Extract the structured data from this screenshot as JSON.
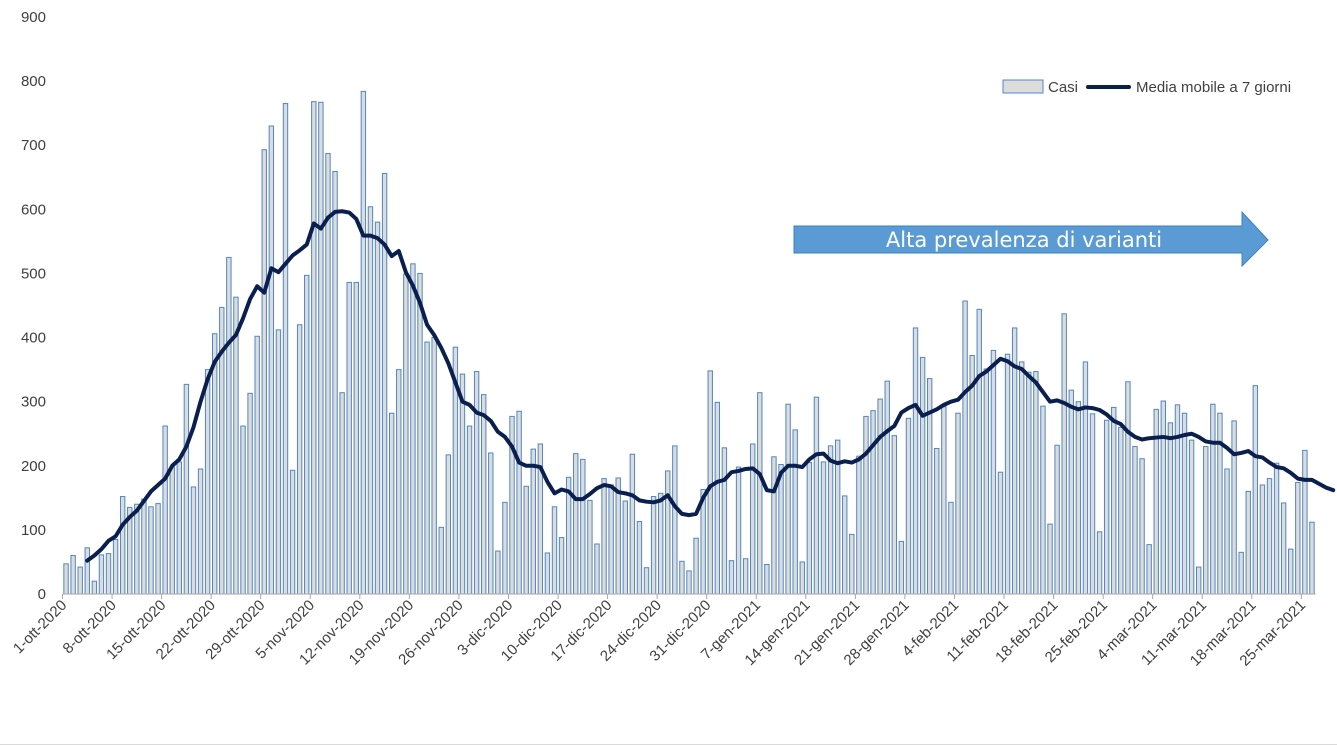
{
  "colors": {
    "bar_fill": "#dcdcdc",
    "bar_stroke": "#4f86c6",
    "line": "#0b1f4e",
    "arrow": "#5b9bd5",
    "text": "#404040"
  },
  "annotation": {
    "text": "Alta prevalenza di varianti"
  },
  "chart_data": {
    "type": "bar",
    "title": "",
    "xlabel": "",
    "ylabel": "",
    "ylim": [
      0,
      900
    ],
    "yticks": [
      0,
      100,
      200,
      300,
      400,
      500,
      600,
      700,
      800,
      900
    ],
    "grid": false,
    "legend_position": "top-right",
    "x_tick_labels": [
      "1-ott-2020",
      "8-ott-2020",
      "15-ott-2020",
      "22-ott-2020",
      "29-ott-2020",
      "5-nov-2020",
      "12-nov-2020",
      "19-nov-2020",
      "26-nov-2020",
      "3-dic-2020",
      "10-dic-2020",
      "17-dic-2020",
      "24-dic-2020",
      "31-dic-2020",
      "7-gen-2021",
      "14-gen-2021",
      "21-gen-2021",
      "28-gen-2021",
      "4-feb-2021",
      "11-feb-2021",
      "18-feb-2021",
      "25-feb-2021",
      "4-mar-2021",
      "11-mar-2021",
      "18-mar-2021",
      "25-mar-2021"
    ],
    "series": [
      {
        "name": "Casi",
        "type": "bar",
        "values": [
          47,
          60,
          42,
          72,
          20,
          61,
          63,
          85,
          152,
          135,
          140,
          148,
          136,
          141,
          262,
          198,
          206,
          327,
          167,
          195,
          350,
          406,
          447,
          525,
          463,
          262,
          313,
          402,
          693,
          730,
          412,
          765,
          193,
          420,
          497,
          768,
          767,
          687,
          659,
          314,
          486,
          486,
          784,
          604,
          580,
          656,
          282,
          350,
          499,
          515,
          500,
          393,
          400,
          104,
          217,
          385,
          343,
          262,
          347,
          311,
          220,
          67,
          143,
          277,
          285,
          168,
          226,
          234,
          64,
          136,
          88,
          182,
          219,
          210,
          146,
          78,
          180,
          170,
          181,
          145,
          218,
          113,
          41,
          152,
          157,
          192,
          231,
          51,
          36,
          87,
          163,
          348,
          299,
          228,
          52,
          198,
          55,
          234,
          314,
          46,
          214,
          202,
          296,
          256,
          50,
          205,
          307,
          206,
          231,
          240,
          153,
          93,
          215,
          277,
          286,
          304,
          332,
          247,
          82,
          274,
          415,
          369,
          336,
          227,
          292,
          143,
          282,
          457,
          372,
          444,
          351,
          380,
          190,
          374,
          415,
          362,
          346,
          347,
          293,
          109,
          232,
          437,
          318,
          300,
          362,
          281,
          97,
          271,
          291,
          260,
          331,
          230,
          211,
          77,
          288,
          301,
          267,
          295,
          282,
          240,
          42,
          230,
          296,
          282,
          195,
          270,
          65,
          160,
          325,
          170,
          180,
          204,
          142,
          70,
          174,
          224,
          112
        ]
      },
      {
        "name": "Media mobile a 7 giorni",
        "type": "line",
        "start_index": 3,
        "values": [
          52,
          60,
          70,
          83,
          90,
          108,
          120,
          130,
          145,
          160,
          170,
          180,
          200,
          210,
          230,
          260,
          300,
          335,
          362,
          378,
          392,
          404,
          430,
          460,
          480,
          470,
          508,
          502,
          515,
          528,
          536,
          545,
          578,
          570,
          587,
          596,
          597,
          595,
          585,
          559,
          559,
          555,
          545,
          527,
          535,
          502,
          481,
          454,
          420,
          404,
          384,
          360,
          330,
          300,
          295,
          283,
          279,
          270,
          253,
          245,
          230,
          205,
          200,
          200,
          198,
          175,
          157,
          163,
          160,
          148,
          148,
          156,
          165,
          170,
          168,
          159,
          157,
          154,
          146,
          144,
          143,
          146,
          154,
          137,
          125,
          123,
          125,
          150,
          168,
          175,
          178,
          190,
          192,
          195,
          196,
          187,
          162,
          160,
          189,
          200,
          200,
          198,
          210,
          218,
          219,
          208,
          204,
          207,
          205,
          210,
          219,
          232,
          245,
          254,
          262,
          283,
          290,
          295,
          278,
          283,
          288,
          295,
          300,
          303,
          315,
          325,
          340,
          347,
          357,
          367,
          363,
          355,
          351,
          340,
          330,
          315,
          300,
          302,
          298,
          292,
          288,
          291,
          290,
          287,
          280,
          270,
          265,
          253,
          245,
          241,
          243,
          244,
          245,
          243,
          245,
          248,
          250,
          245,
          238,
          236,
          236,
          228,
          218,
          220,
          223,
          215,
          213,
          205,
          198,
          196,
          189,
          180,
          178,
          178,
          172,
          166,
          162
        ]
      }
    ]
  }
}
